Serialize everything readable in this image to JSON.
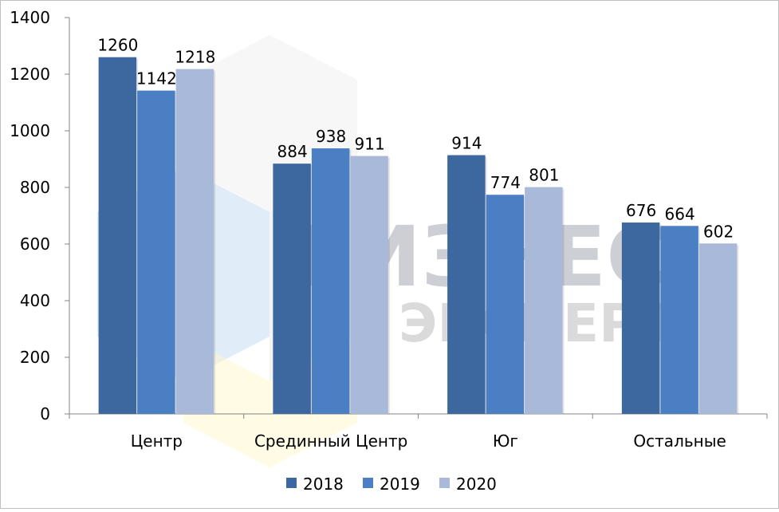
{
  "chart_data": {
    "type": "bar",
    "title": "",
    "xlabel": "",
    "ylabel": "",
    "ylim": [
      0,
      1400
    ],
    "yticks": [
      0,
      200,
      400,
      600,
      800,
      1000,
      1200,
      1400
    ],
    "grid": false,
    "legend_position": "bottom",
    "categories": [
      "Центр",
      "Срединный Центр",
      "Юг",
      "Остальные"
    ],
    "series": [
      {
        "name": "2018",
        "color": "#3d679f",
        "values": [
          1260,
          884,
          914,
          676
        ]
      },
      {
        "name": "2019",
        "color": "#4b7fc4",
        "values": [
          1142,
          938,
          774,
          664
        ]
      },
      {
        "name": "2020",
        "color": "#a9b9da",
        "values": [
          1218,
          911,
          801,
          602
        ]
      }
    ]
  },
  "watermark": {
    "line1": "БИЗНЕС",
    "line2": "ЭКСПЕРТ"
  }
}
